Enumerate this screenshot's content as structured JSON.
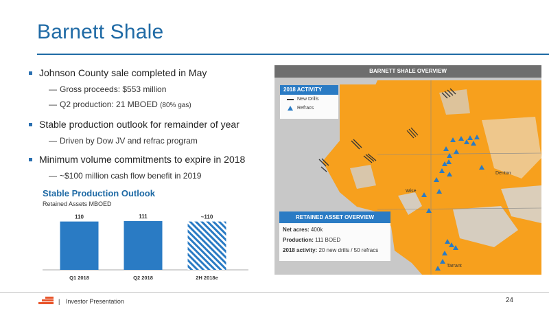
{
  "title": "Barnett Shale",
  "bullets": [
    {
      "text": "Johnson County sale completed in May",
      "subs": [
        {
          "text": "Gross proceeds: $553 million",
          "note": ""
        },
        {
          "text": "Q2 production: 21 MBOED",
          "note": "(80% gas)"
        }
      ]
    },
    {
      "text": "Stable production outlook for remainder of year",
      "subs": [
        {
          "text": "Driven by Dow JV and refrac program",
          "note": ""
        }
      ]
    },
    {
      "text": "Minimum volume commitments to expire in 2018",
      "subs": [
        {
          "text": "~$100 million cash flow benefit in 2019",
          "note": ""
        }
      ]
    }
  ],
  "dash": "—",
  "chart_title": "Stable Production Outlook",
  "chart_subtitle": "Retained Assets MBOED",
  "chart_data": {
    "type": "bar",
    "categories": [
      "Q1 2018",
      "Q2 2018",
      "2H 2018e"
    ],
    "values": [
      110,
      111,
      110
    ],
    "data_labels": [
      "110",
      "111",
      "~110"
    ],
    "hatched": [
      false,
      false,
      true
    ],
    "title": "Stable Production Outlook",
    "ylabel": "Retained Assets MBOED",
    "ylim": [
      0,
      125
    ],
    "grid": false,
    "color": "#2a7bc4"
  },
  "map": {
    "header": "BARNETT SHALE OVERVIEW",
    "legend_title": "2018 ACTIVITY",
    "legend_new_drills": "New Drills",
    "legend_refracs": "Refracs",
    "labels": {
      "denton": "Denton",
      "wise": "Wise",
      "tarrant": "Tarrant"
    },
    "retained_title": "RETAINED ASSET OVERVIEW",
    "net_acres_label": "Net acres:",
    "net_acres_value": "400k",
    "production_label": "Production:",
    "production_value": "111 BOED",
    "activity_label": "2018 activity:",
    "activity_value": "20 new drills / 50 refracs",
    "colors": {
      "acreage": "#f7a01d",
      "refrac": "#2a7bc4",
      "background": "#c8c8c8"
    }
  },
  "footer": {
    "text": "Investor Presentation",
    "separator": "|",
    "page": "24"
  }
}
